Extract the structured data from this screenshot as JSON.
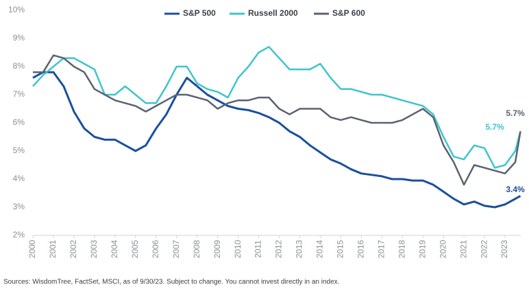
{
  "chart_data": {
    "type": "line",
    "x": [
      2000,
      2000.5,
      2001,
      2001.5,
      2002,
      2002.5,
      2003,
      2003.5,
      2004,
      2004.5,
      2005,
      2005.5,
      2006,
      2006.5,
      2007,
      2007.5,
      2008,
      2008.5,
      2009,
      2009.5,
      2010,
      2010.5,
      2011,
      2011.5,
      2012,
      2012.5,
      2013,
      2013.5,
      2014,
      2014.5,
      2015,
      2015.5,
      2016,
      2016.5,
      2017,
      2017.5,
      2018,
      2018.5,
      2019,
      2019.5,
      2020,
      2020.5,
      2021,
      2021.5,
      2022,
      2022.5,
      2023,
      2023.5,
      2023.75
    ],
    "series": [
      {
        "name": "S&P 500",
        "color": "#1a4fa0",
        "values": [
          7.6,
          7.8,
          7.8,
          7.3,
          6.4,
          5.8,
          5.5,
          5.4,
          5.4,
          5.2,
          5.0,
          5.2,
          5.8,
          6.3,
          7.0,
          7.6,
          7.3,
          7.0,
          6.8,
          6.6,
          6.5,
          6.45,
          6.35,
          6.2,
          6.0,
          5.7,
          5.5,
          5.2,
          4.95,
          4.7,
          4.55,
          4.35,
          4.2,
          4.15,
          4.1,
          4.0,
          4.0,
          3.95,
          3.95,
          3.8,
          3.55,
          3.3,
          3.1,
          3.2,
          3.05,
          3.0,
          3.1,
          3.3,
          3.4
        ]
      },
      {
        "name": "Russell 2000",
        "color": "#3cc5cc",
        "values": [
          7.3,
          7.7,
          8.0,
          8.3,
          8.3,
          8.1,
          7.9,
          7.0,
          7.0,
          7.3,
          7.0,
          6.7,
          6.7,
          7.3,
          8.0,
          8.0,
          7.4,
          7.2,
          7.1,
          6.9,
          7.6,
          8.0,
          8.5,
          8.7,
          8.3,
          7.9,
          7.9,
          7.9,
          8.1,
          7.6,
          7.2,
          7.2,
          7.1,
          7.0,
          7.0,
          6.9,
          6.8,
          6.7,
          6.6,
          6.3,
          5.5,
          4.8,
          4.7,
          5.2,
          5.1,
          4.4,
          4.5,
          5.0,
          5.7
        ]
      },
      {
        "name": "S&P 600",
        "color": "#5a6270",
        "values": [
          7.8,
          7.8,
          8.4,
          8.3,
          8.0,
          7.8,
          7.2,
          7.0,
          6.8,
          6.7,
          6.6,
          6.4,
          6.6,
          6.8,
          7.0,
          7.0,
          6.9,
          6.8,
          6.5,
          6.7,
          6.8,
          6.8,
          6.9,
          6.9,
          6.5,
          6.3,
          6.5,
          6.5,
          6.5,
          6.2,
          6.1,
          6.2,
          6.1,
          6.0,
          6.0,
          6.0,
          6.1,
          6.3,
          6.5,
          6.2,
          5.2,
          4.6,
          3.8,
          4.5,
          4.4,
          4.3,
          4.2,
          4.6,
          5.7
        ]
      }
    ],
    "xlim": [
      2000,
      2024
    ],
    "xticks": [
      2000,
      2001,
      2002,
      2003,
      2004,
      2005,
      2006,
      2007,
      2008,
      2009,
      2010,
      2011,
      2012,
      2013,
      2014,
      2015,
      2016,
      2017,
      2018,
      2019,
      2020,
      2021,
      2022,
      2023
    ],
    "ylim": [
      2,
      10
    ],
    "yticks": [
      {
        "value": 2,
        "label": "2%"
      },
      {
        "value": 3,
        "label": "3%"
      },
      {
        "value": 4,
        "label": "4%"
      },
      {
        "value": 5,
        "label": "5%"
      },
      {
        "value": 6,
        "label": "6%"
      },
      {
        "value": 7,
        "label": "7%"
      },
      {
        "value": 8,
        "label": "8%"
      },
      {
        "value": 9,
        "label": "9%"
      },
      {
        "value": 10,
        "label": "10%"
      }
    ],
    "annotations": [
      {
        "text": "5.7%",
        "color": "#5a6270"
      },
      {
        "text": "5.7%",
        "color": "#3cc5cc"
      },
      {
        "text": "3.4%",
        "color": "#1a4fa0"
      }
    ],
    "source": "Sources: WisdomTree, FactSet, MSCI, as of 9/30/23. Subject to change. You cannot invest directly in an index."
  }
}
